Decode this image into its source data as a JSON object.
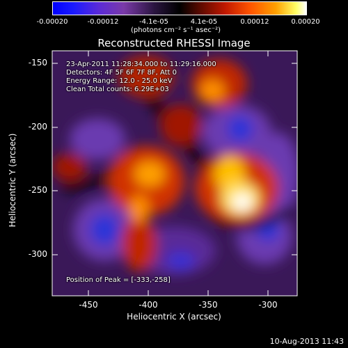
{
  "colorbar": {
    "ticks": [
      "-0.00020",
      "-0.00012",
      "-4.1e-05",
      "4.1e-05",
      "0.00012",
      "0.00020"
    ],
    "unit_label_html": "(photons cm⁻² s⁻¹ asec⁻²)"
  },
  "plot": {
    "title": "Reconstructed RHESSI Image",
    "xlabel": "Heliocentric X (arcsec)",
    "ylabel": "Heliocentric Y (arcsec)",
    "xticks": [
      "-450",
      "-400",
      "-350",
      "-300"
    ],
    "yticks": [
      "-150",
      "-200",
      "-250",
      "-300"
    ]
  },
  "annotations": {
    "line1": "23-Apr-2011 11:28:34.000 to 11:29:16.000",
    "line2": "Detectors: 4F 5F 6F 7F 8F, Att 0",
    "line3": "Energy Range: 12.0 - 25.0 keV",
    "line4": "Clean    Total counts: 6.29E+03",
    "peak": "Position of Peak = [-333,-258]"
  },
  "footer": {
    "timestamp": "10-Aug-2013 11:43"
  },
  "chart_data": {
    "type": "heatmap",
    "title": "Reconstructed RHESSI Image",
    "xlabel": "Heliocentric X (arcsec)",
    "ylabel": "Heliocentric Y (arcsec)",
    "xlim": [
      -478,
      -286
    ],
    "ylim": [
      -333,
      -140
    ],
    "colorbar_range": [
      -0.0002,
      0.0002
    ],
    "peak": [
      -333,
      -258
    ]
  }
}
